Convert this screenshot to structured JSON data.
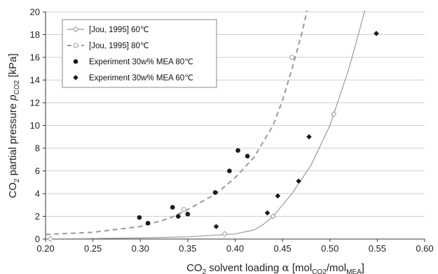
{
  "chart_data": {
    "type": "scatter",
    "title": "",
    "xlabel": {
      "prefix": "CO",
      "sub": "2",
      "mid": " solvent loading ",
      "alpha": "α",
      "unit_open": " [mol",
      "unit_sub1": "CO2",
      "unit_mid": "/mol",
      "unit_sub2": "MEA",
      "unit_close": "]"
    },
    "ylabel": {
      "prefix": "CO",
      "sub": "2",
      "mid": " partial pressure ",
      "symbol": "p",
      "symbol_sub": "CO2",
      "unit": " [kPa]"
    },
    "xlim": [
      0.2,
      0.6
    ],
    "ylim": [
      0,
      20
    ],
    "x_ticks": [
      "0.20",
      "0.25",
      "0.30",
      "0.35",
      "0.40",
      "0.45",
      "0.50",
      "0.55",
      "0.60"
    ],
    "y_ticks": [
      "0",
      "2",
      "4",
      "6",
      "8",
      "10",
      "12",
      "14",
      "16",
      "18",
      "20"
    ],
    "grid": "horizontal",
    "legend_position": "top-left",
    "series": [
      {
        "name": "[Jou, 1995] 60℃",
        "kind": "line",
        "line_style": "solid",
        "color": "#9a9a9a",
        "marker": "open-diamond",
        "curve": [
          [
            0.2,
            0.0
          ],
          [
            0.25,
            0.05
          ],
          [
            0.3,
            0.1
          ],
          [
            0.35,
            0.2
          ],
          [
            0.4,
            0.45
          ],
          [
            0.42,
            0.8
          ],
          [
            0.43,
            1.3
          ],
          [
            0.44,
            2.0
          ],
          [
            0.46,
            4.0
          ],
          [
            0.48,
            6.5
          ],
          [
            0.5,
            10.0
          ],
          [
            0.51,
            12.5
          ],
          [
            0.52,
            15.0
          ],
          [
            0.53,
            18.0
          ],
          [
            0.538,
            20.5
          ]
        ],
        "markers": [
          [
            0.205,
            0.02
          ],
          [
            0.389,
            0.45
          ],
          [
            0.44,
            2.0
          ],
          [
            0.504,
            11.0
          ]
        ]
      },
      {
        "name": "[Jou, 1995] 80℃",
        "kind": "line",
        "line_style": "dashed",
        "color": "#9a9a9a",
        "marker": "open-circle",
        "curve": [
          [
            0.2,
            0.4
          ],
          [
            0.25,
            0.6
          ],
          [
            0.3,
            1.1
          ],
          [
            0.33,
            1.8
          ],
          [
            0.35,
            2.6
          ],
          [
            0.38,
            4.0
          ],
          [
            0.4,
            5.4
          ],
          [
            0.42,
            7.2
          ],
          [
            0.44,
            10.0
          ],
          [
            0.45,
            12.2
          ],
          [
            0.46,
            15.0
          ],
          [
            0.47,
            18.0
          ],
          [
            0.477,
            20.5
          ]
        ],
        "markers": [
          [
            0.346,
            2.6
          ],
          [
            0.46,
            16.0
          ]
        ]
      },
      {
        "name": "Experiment 30w% MEA 80℃",
        "kind": "scatter",
        "color": "#1a1a1a",
        "marker": "filled-circle",
        "points": [
          [
            0.299,
            1.9
          ],
          [
            0.308,
            1.4
          ],
          [
            0.334,
            2.8
          ],
          [
            0.34,
            2.0
          ],
          [
            0.35,
            2.2
          ],
          [
            0.379,
            4.1
          ],
          [
            0.394,
            6.0
          ],
          [
            0.403,
            7.8
          ],
          [
            0.413,
            7.3
          ]
        ]
      },
      {
        "name": "Experiment 30w% MEA 60℃",
        "kind": "scatter",
        "color": "#1a1a1a",
        "marker": "filled-diamond",
        "points": [
          [
            0.38,
            1.1
          ],
          [
            0.434,
            2.3
          ],
          [
            0.445,
            3.8
          ],
          [
            0.467,
            5.1
          ],
          [
            0.478,
            9.0
          ],
          [
            0.549,
            18.1
          ]
        ]
      }
    ]
  }
}
